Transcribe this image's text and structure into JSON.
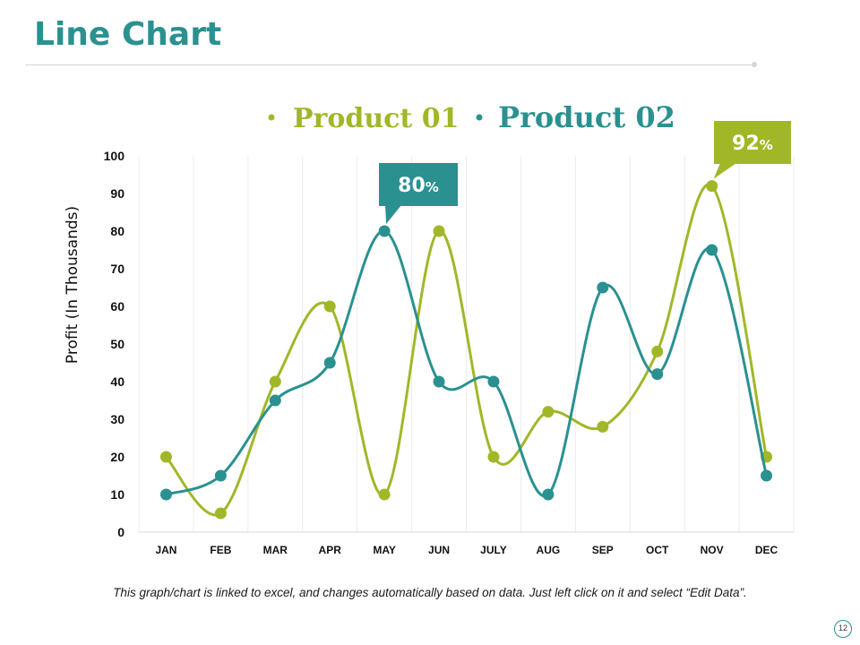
{
  "slide": {
    "title": "Line Chart",
    "footnote": "This graph/chart is linked to excel, and changes automatically based on data. Just left click on it and select “Edit Data”.",
    "page_number": "12"
  },
  "colors": {
    "product01": "#a2b728",
    "product02": "#2a9190",
    "title": "#2a9190"
  },
  "chart_data": {
    "type": "line",
    "smooth": true,
    "categories": [
      "JAN",
      "FEB",
      "MAR",
      "APR",
      "MAY",
      "JUN",
      "JULY",
      "AUG",
      "SEP",
      "OCT",
      "NOV",
      "DEC"
    ],
    "series": [
      {
        "name": "Product 01",
        "color": "#a2b728",
        "values": [
          20,
          5,
          40,
          60,
          10,
          80,
          20,
          32,
          28,
          48,
          92,
          20
        ]
      },
      {
        "name": "Product 02",
        "color": "#2a9190",
        "values": [
          10,
          15,
          35,
          45,
          80,
          40,
          40,
          10,
          65,
          42,
          75,
          15
        ]
      }
    ],
    "title": "",
    "xlabel": "",
    "ylabel": "Profit (In Thousands)",
    "ylim": [
      0,
      100
    ],
    "yticks": [
      "0",
      "10",
      "20",
      "30",
      "40",
      "50",
      "60",
      "70",
      "80",
      "90",
      "100"
    ],
    "grid": "vertical",
    "legend": "top-center",
    "callouts": [
      {
        "series": "Product 02",
        "category": "MAY",
        "value": "80",
        "unit": "%",
        "position": "top"
      },
      {
        "series": "Product 01",
        "category": "NOV",
        "value": "92",
        "unit": "%",
        "position": "top"
      }
    ]
  }
}
